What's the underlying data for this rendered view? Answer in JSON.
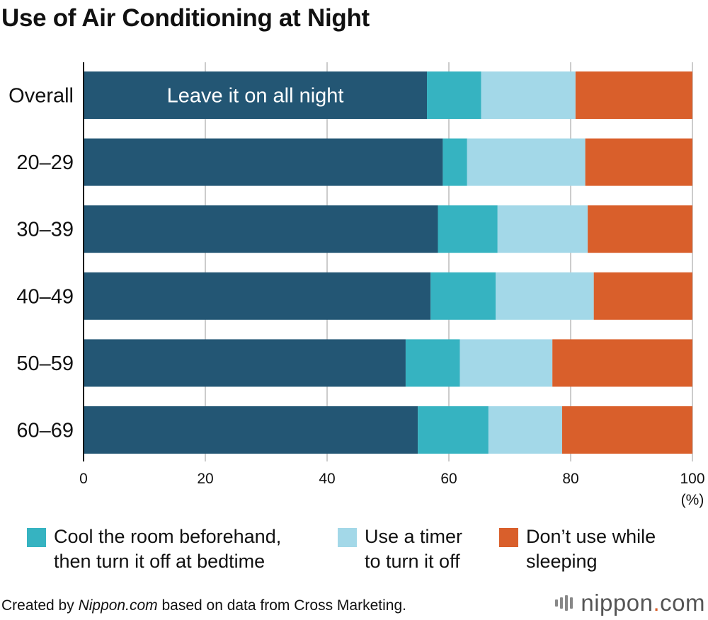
{
  "title": "Use of Air Conditioning at Night",
  "colors": {
    "leave_on": "#235674",
    "cool_before": "#36b3c1",
    "timer": "#a3d8e8",
    "dont_use": "#d95f2b",
    "grid": "#cccccc"
  },
  "chart_data": {
    "type": "bar",
    "orientation": "horizontal",
    "stacked": true,
    "categories": [
      "Overall",
      "20–29",
      "30–39",
      "40–49",
      "50–59",
      "60–69"
    ],
    "series": [
      {
        "name": "Leave it on all night",
        "values": [
          56.4,
          59.0,
          58.2,
          57.0,
          52.9,
          54.9
        ]
      },
      {
        "name": "Cool the room beforehand, then turn it off at bedtime",
        "values": [
          8.9,
          4.0,
          9.8,
          10.7,
          8.9,
          11.6
        ]
      },
      {
        "name": "Use a timer to turn it off",
        "values": [
          15.5,
          19.4,
          14.8,
          16.1,
          15.2,
          12.1
        ]
      },
      {
        "name": "Don’t use while sleeping",
        "values": [
          19.2,
          17.6,
          17.2,
          16.2,
          23.0,
          21.4
        ]
      }
    ],
    "xlim": [
      0,
      100
    ],
    "xticks": [
      "0",
      "20",
      "40",
      "60",
      "80",
      "100"
    ],
    "xunit": "(%)",
    "grid": true,
    "inline_label": "Leave it on all night",
    "legend": [
      "Cool the room beforehand,\nthen turn it off at bedtime",
      "Use a timer\nto turn it off",
      "Don’t use while\nsleeping"
    ],
    "legend_position": "bottom"
  },
  "footer": {
    "prefix": "Created by ",
    "source_italic": "Nippon.com",
    "suffix": " based on data from Cross Marketing."
  },
  "logo": {
    "name": "nippon",
    "dot": ".",
    "tld": "com"
  }
}
